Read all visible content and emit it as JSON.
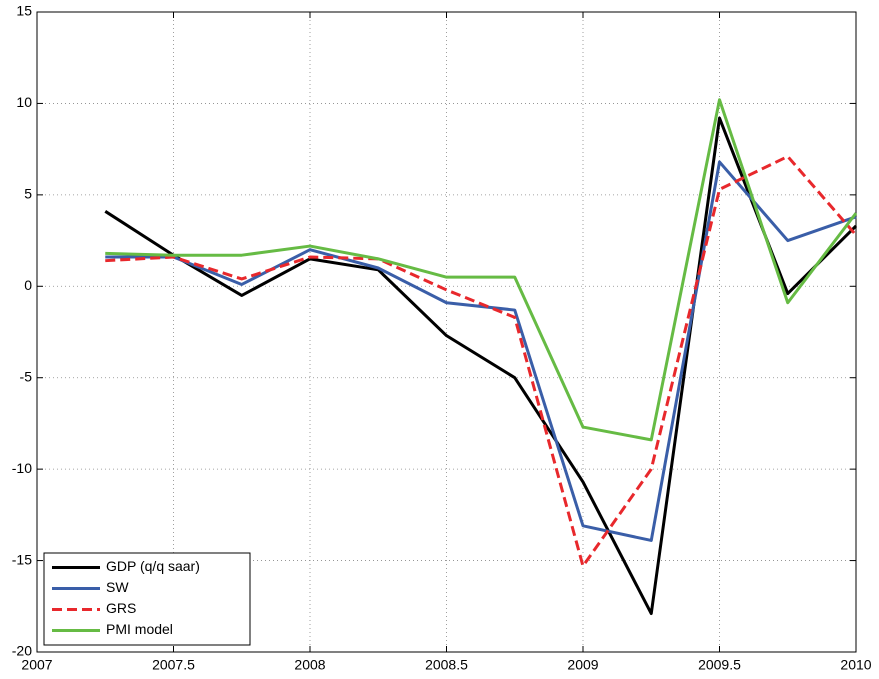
{
  "chart_data": {
    "type": "line",
    "x": [
      2007.25,
      2007.5,
      2007.75,
      2008,
      2008.25,
      2008.5,
      2008.75,
      2009,
      2009.25,
      2009.5,
      2009.75,
      2010
    ],
    "series": [
      {
        "name": "GDP (q/q saar)",
        "color": "#000000",
        "dash": false,
        "values": [
          4.1,
          1.7,
          -0.5,
          1.5,
          0.9,
          -2.7,
          -5.0,
          -10.7,
          -17.9,
          9.2,
          -0.4,
          3.3
        ]
      },
      {
        "name": "SW",
        "color": "#3a5ea8",
        "dash": false,
        "values": [
          1.6,
          1.6,
          0.1,
          2.0,
          1.0,
          -0.9,
          -1.3,
          -13.1,
          -13.9,
          6.8,
          2.5,
          3.8
        ]
      },
      {
        "name": "GRS",
        "color": "#e8282c",
        "dash": true,
        "values": [
          1.4,
          1.6,
          0.4,
          1.6,
          1.5,
          -0.2,
          -1.7,
          -15.3,
          -10.0,
          5.3,
          7.1,
          2.8
        ]
      },
      {
        "name": "PMI model",
        "color": "#66bb44",
        "dash": false,
        "values": [
          1.8,
          1.7,
          1.7,
          2.2,
          1.5,
          0.5,
          0.5,
          -7.7,
          -8.4,
          10.2,
          -0.9,
          4.0
        ]
      }
    ],
    "xlim": [
      2007,
      2010
    ],
    "xticks": [
      2007,
      2007.5,
      2008,
      2008.5,
      2009,
      2009.5,
      2010
    ],
    "ylim": [
      -20,
      15
    ],
    "yticks": [
      -20,
      -15,
      -10,
      -5,
      0,
      5,
      10,
      15
    ],
    "grid": true,
    "legend": "lower-left"
  }
}
